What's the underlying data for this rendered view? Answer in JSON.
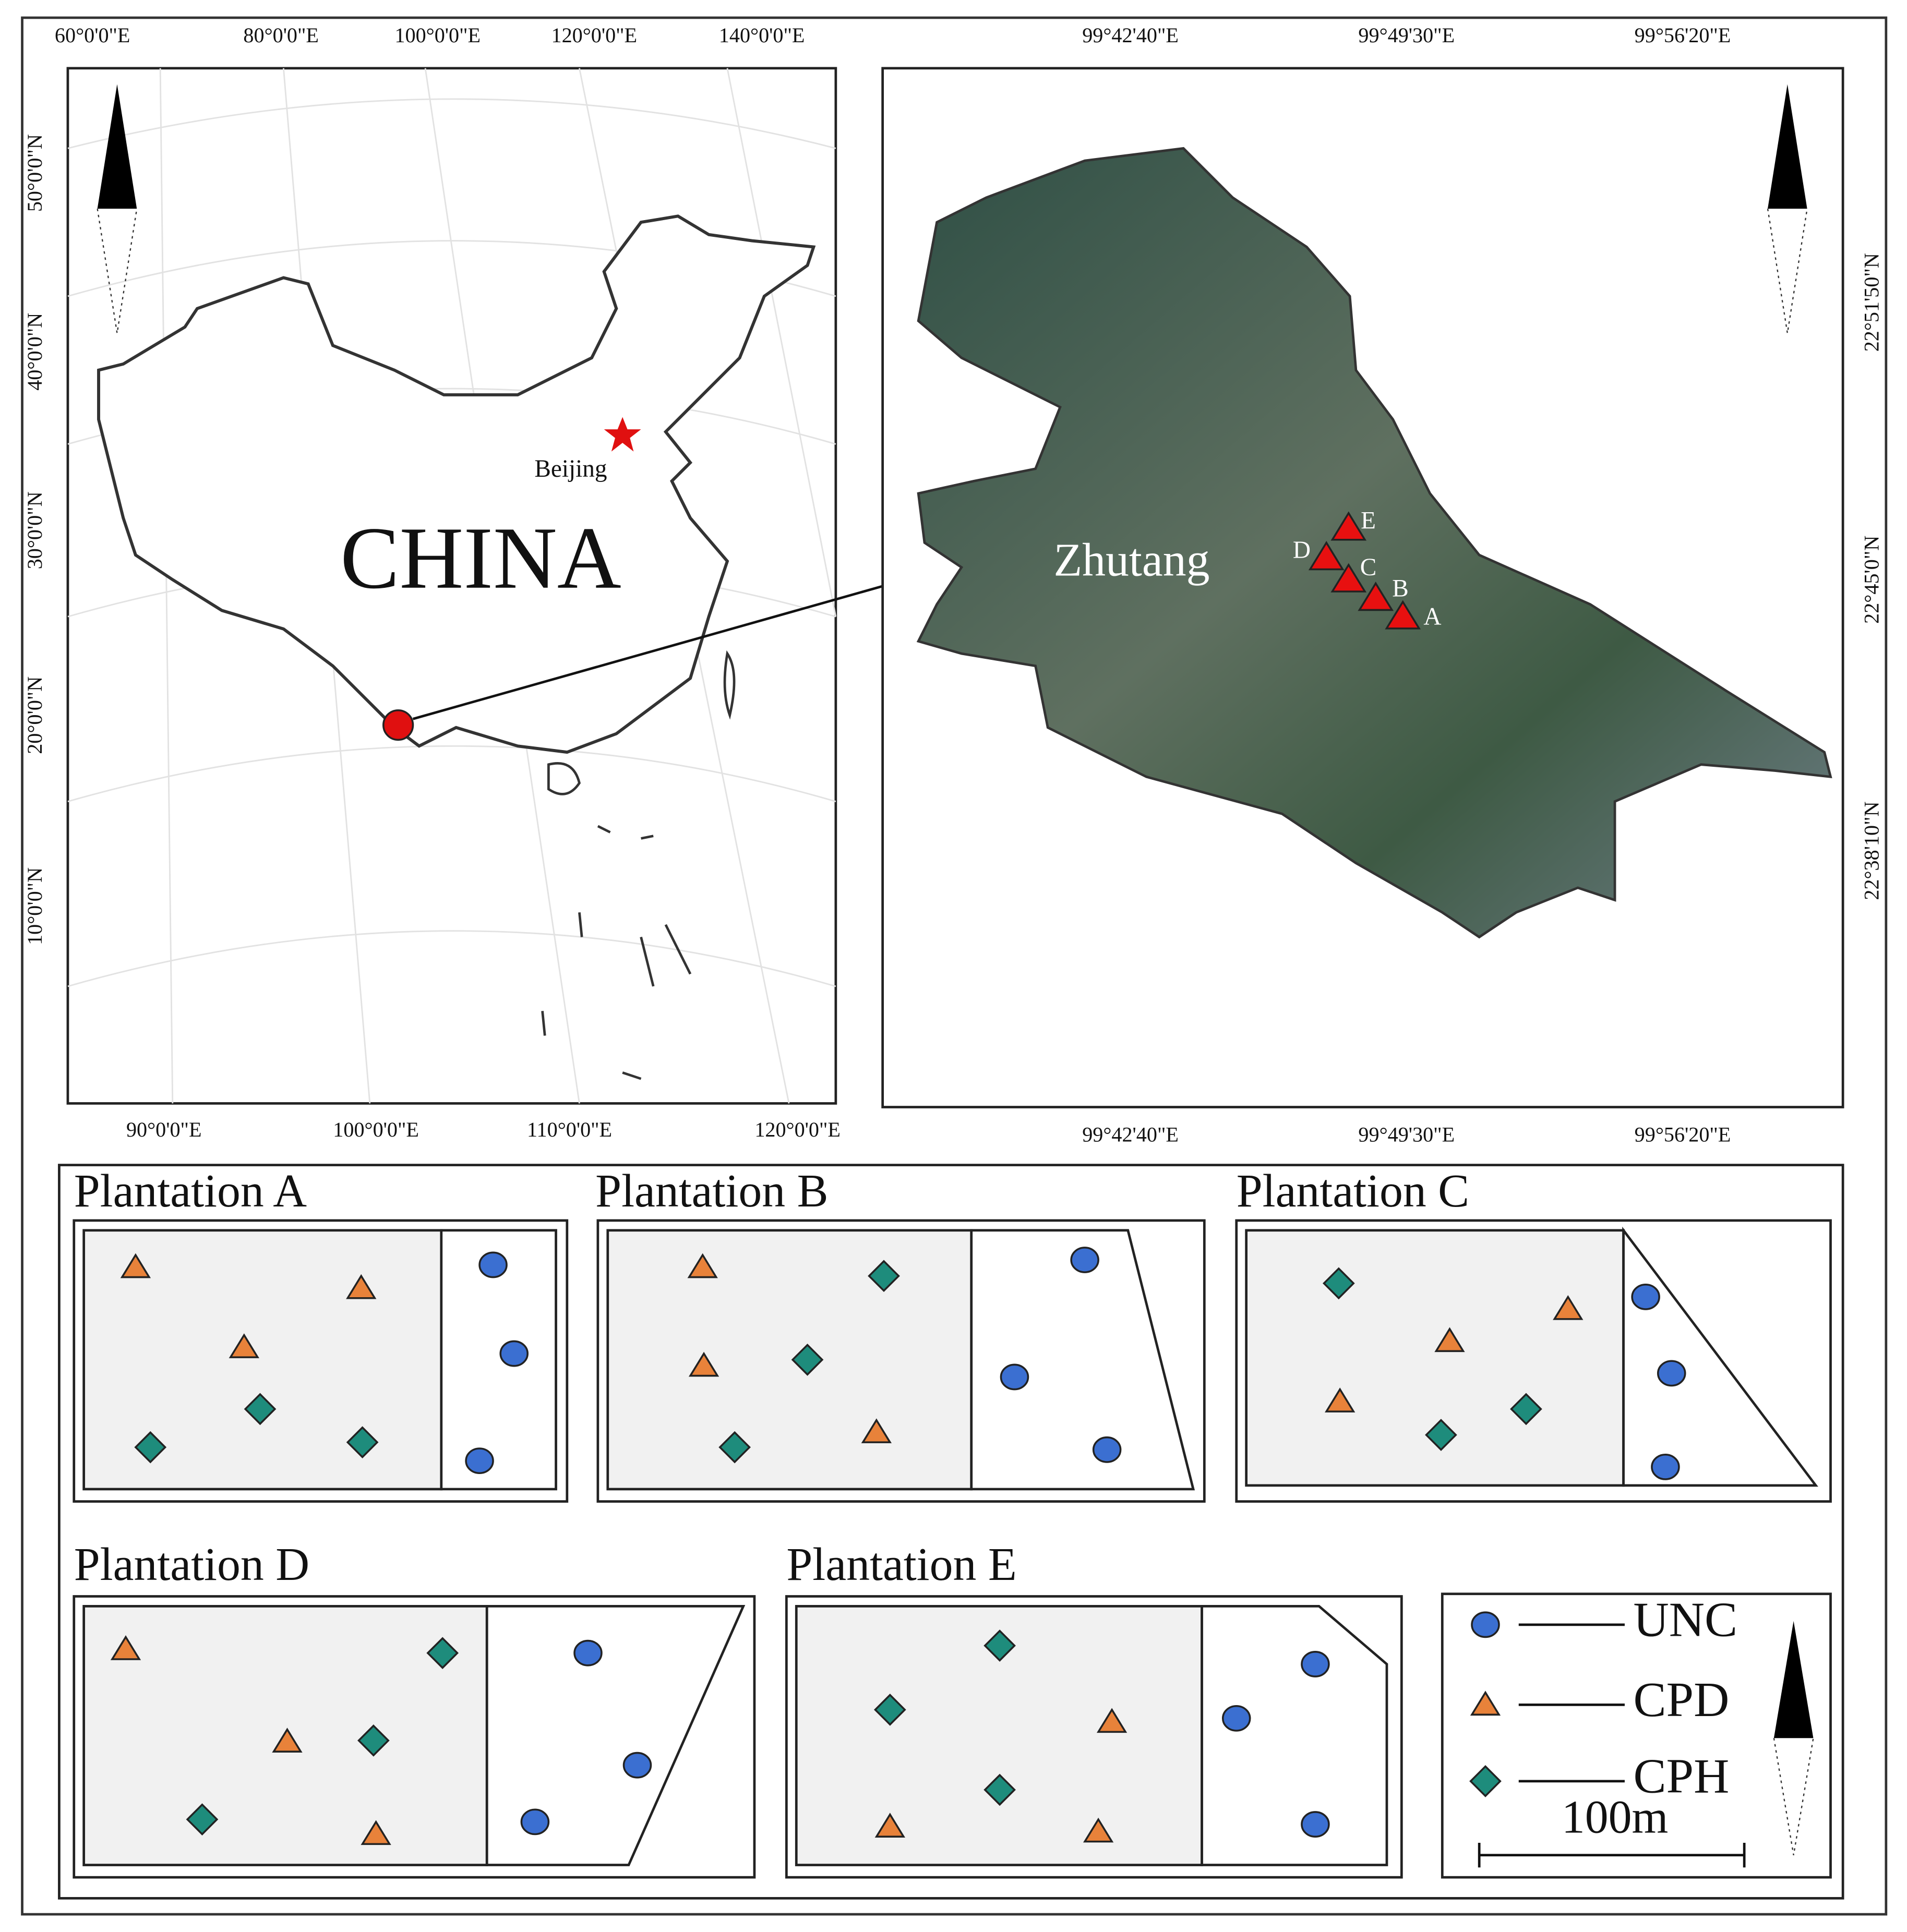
{
  "china_map": {
    "top_labels": [
      "60°0'0\"E",
      "80°0'0\"E",
      "100°0'0\"E",
      "120°0'0\"E",
      "140°0'0\"E"
    ],
    "bottom_labels": [
      "90°0'0\"E",
      "100°0'0\"E",
      "110°0'0\"E",
      "120°0'0\"E"
    ],
    "left_labels": [
      "50°0'0\"N",
      "40°0'0\"N",
      "30°0'0\"N",
      "20°0'0\"N",
      "10°0'0\"N"
    ],
    "country_label": "CHINA",
    "city_label": "Beijing"
  },
  "study_map": {
    "top_labels": [
      "99°42'40\"E",
      "99°49'30\"E",
      "99°56'20\"E"
    ],
    "bottom_labels": [
      "99°42'40\"E",
      "99°49'30\"E",
      "99°56'20\"E"
    ],
    "right_labels": [
      "22°51'50\"N",
      "22°45'0\"N",
      "22°38'10\"N"
    ],
    "place_label": "Zhutang",
    "sites": [
      "A",
      "B",
      "C",
      "D",
      "E"
    ]
  },
  "plantations": [
    {
      "title": "Plantation A"
    },
    {
      "title": "Plantation B"
    },
    {
      "title": "Plantation C"
    },
    {
      "title": "Plantation D"
    },
    {
      "title": "Plantation E"
    }
  ],
  "legend": {
    "items": [
      "UNC",
      "CPD",
      "CPH"
    ],
    "scale": "100m"
  }
}
